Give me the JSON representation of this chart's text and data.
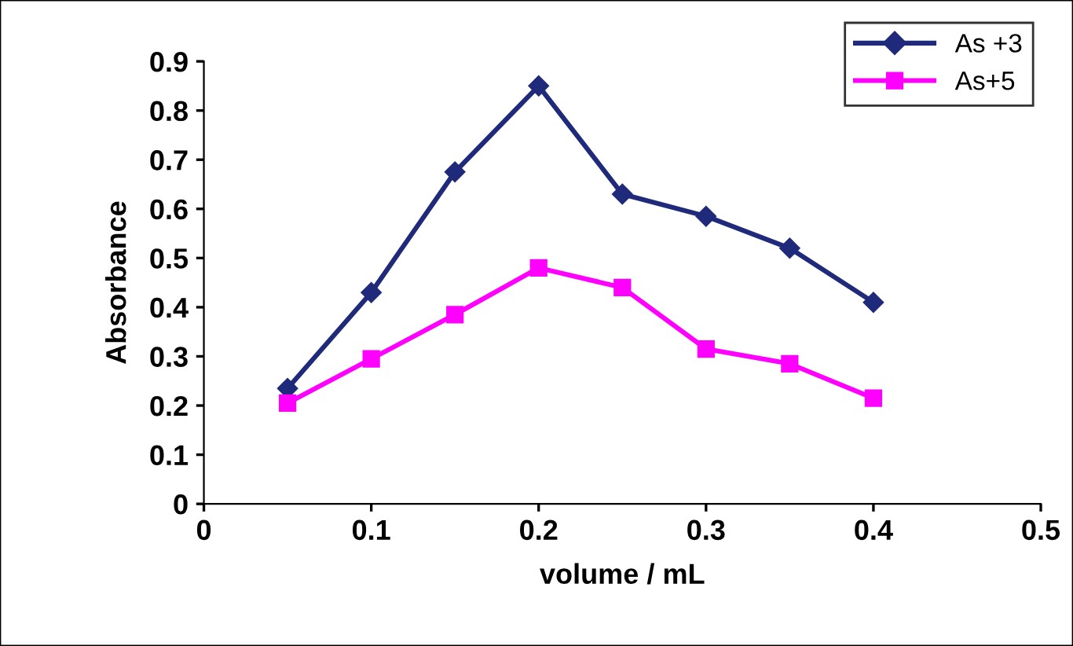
{
  "chart_data": {
    "type": "line",
    "xlabel": "volume / mL",
    "ylabel": "Absorbance",
    "x": [
      0.05,
      0.1,
      0.15,
      0.2,
      0.25,
      0.3,
      0.35,
      0.4
    ],
    "series": [
      {
        "name": "As +3",
        "color": "#1f2a7a",
        "marker": "diamond",
        "values": [
          0.235,
          0.43,
          0.675,
          0.85,
          0.63,
          0.585,
          0.52,
          0.41
        ]
      },
      {
        "name": "As+5",
        "color": "#ff00ff",
        "marker": "square",
        "values": [
          0.205,
          0.295,
          0.385,
          0.48,
          0.44,
          0.315,
          0.285,
          0.215
        ]
      }
    ],
    "xlim": [
      0,
      0.5
    ],
    "xticks": [
      0,
      0.1,
      0.2,
      0.3,
      0.4,
      0.5
    ],
    "ylim": [
      0,
      0.9
    ],
    "yticks": [
      0,
      0.1,
      0.2,
      0.3,
      0.4,
      0.5,
      0.6,
      0.7,
      0.8,
      0.9
    ],
    "grid": false,
    "legend": "top right",
    "line_style": "solid"
  }
}
